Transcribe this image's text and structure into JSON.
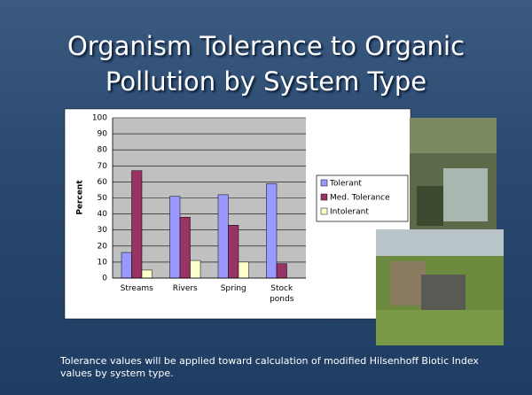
{
  "slide": {
    "title": "Organism Tolerance to Organic Pollution by System Type",
    "caption": "Tolerance values will be applied toward calculation of modified Hilsenhoff Biotic Index values by system type."
  },
  "chart_data": {
    "type": "bar",
    "ylabel": "Percent",
    "categories": [
      "Streams",
      "Rivers",
      "Spring",
      "Stock ponds"
    ],
    "series": [
      {
        "name": "Tolerant",
        "color": "#9999ff",
        "values": [
          16,
          51,
          52,
          59
        ]
      },
      {
        "name": "Med. Tolerance",
        "color": "#993366",
        "values": [
          67,
          38,
          33,
          9
        ]
      },
      {
        "name": "Intolerant",
        "color": "#ffffcc",
        "values": [
          5,
          11,
          10,
          0
        ]
      }
    ],
    "ylim": [
      0,
      100
    ],
    "yticks": [
      0,
      10,
      20,
      30,
      40,
      50,
      60,
      70,
      80,
      90,
      100
    ],
    "grid": true
  }
}
